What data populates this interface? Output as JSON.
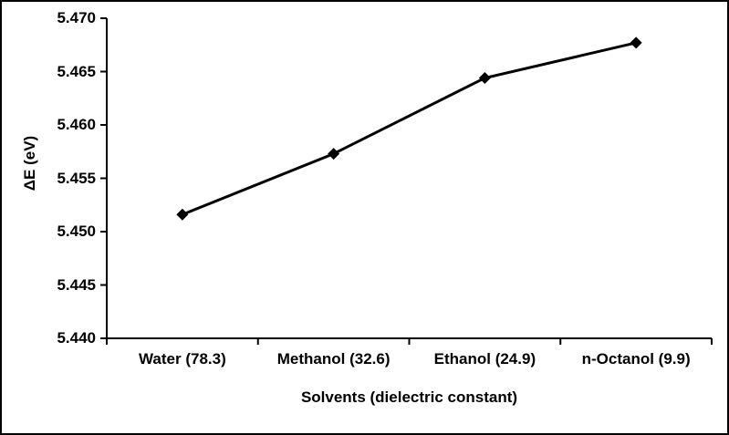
{
  "chart_data": {
    "type": "line",
    "categories": [
      "Water (78.3)",
      "Methanol (32.6)",
      "Ethanol (24.9)",
      "n-Octanol (9.9)"
    ],
    "values": [
      5.4516,
      5.4573,
      5.4644,
      5.4677
    ],
    "title": "",
    "xlabel": "Solvents (dielectric constant)",
    "ylabel": "ΔE (eV)",
    "ylim": [
      5.44,
      5.47
    ],
    "ytick_step": 0.005,
    "ytick_labels": [
      "5.440",
      "5.445",
      "5.450",
      "5.455",
      "5.460",
      "5.465",
      "5.470"
    ],
    "grid": false,
    "legend": false,
    "line_color": "#000000",
    "axis_color": "#000000",
    "marker": "diamond",
    "background_color": "#ffffff",
    "border_color": "#000000"
  }
}
